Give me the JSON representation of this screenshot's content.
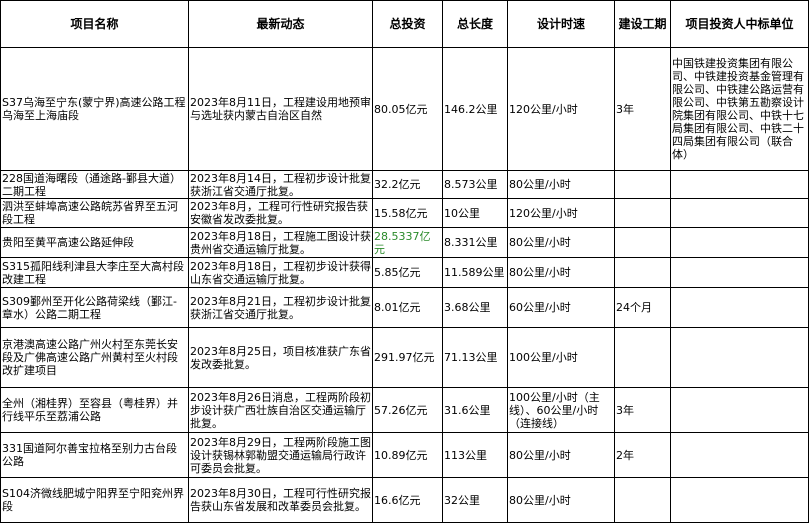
{
  "headers": [
    "项目名称",
    "最新动态",
    "总投资",
    "总长度",
    "设计时速",
    "建设工期",
    "项目投资人中标单位"
  ],
  "rows": [
    [
      "S37乌海至宁东(蒙宁界)高速公路工程乌海至上海庙段",
      "2023年8月11日，工程建设用地预审与选址获内蒙古自治区自然",
      "80.05亿元",
      "146.2公里",
      "120公里/小时",
      "3年",
      "中国铁建投资集团有限公司、中铁建投资基金管理有限公司、中铁建公路运营有限公司、中铁第五勘察设计院集团有限公司、中铁十七局集团有限公司、中铁二十四局集团有限公司（联合体）"
    ],
    [
      "228国道海曙段（通途路-鄞县大道）二期工程",
      "2023年8月14日，工程初步设计批复获浙江省交通厅批复。",
      "32.2亿元",
      "8.573公里",
      "80公里/小时",
      "",
      ""
    ],
    [
      "泗洪至蚌埠高速公路皖苏省界至五河段工程",
      "2023年8月，工程可行性研究报告获安徽省发改委批复。",
      "15.58亿元",
      "10公里",
      "120公里/小时",
      "",
      ""
    ],
    [
      "贵阳至黄平高速公路延伸段",
      "2023年8月18日，工程施工图设计获贵州省交通运输厅批复。",
      "28.5337亿元",
      "8.331公里",
      "80公里/小时",
      "",
      ""
    ],
    [
      "S315孤阳线利津县大李庄至大高村段改建工程",
      "2023年8月18日，工程初步设计获得山东省交通运输厅批复。",
      "5.85亿元",
      "11.589公里",
      "80公里/小时",
      "",
      ""
    ],
    [
      "S309鄞州至开化公路荷梁线（鄞江-章水）公路二期工程",
      "2023年8月21日，工程初步设计批复获浙江省交通厅批复。",
      "8.01亿元",
      "3.68公里",
      "60公里/小时",
      "24个月",
      ""
    ],
    [
      "京港澳高速公路广州火村至东莞长安段及广佛高速公路广州黄村至火村段改扩建项目",
      "2023年8月25日，项目核准获广东省发改委批复。",
      "291.97亿元",
      "71.13公里",
      "100公里/小时",
      "",
      ""
    ],
    [
      "全州（湘桂界）至容县（粤桂界）并行线平乐至荔浦公路",
      "2023年8月26日消息，工程两阶段初步设计获广西壮族自治区交通运输厅批复。",
      "57.26亿元",
      "31.6公里",
      "100公里/小时（主线）、60公里/小时（连接线）",
      "3年",
      ""
    ],
    [
      "331国道阿尔善宝拉格至别力古台段公路",
      "2023年8月29日，工程两阶段施工图设计获锡林郭勒盟交通运输局行政许可委员会批复。",
      "10.89亿元",
      "113公里",
      "80公里/小时",
      "2年",
      ""
    ],
    [
      "S104济微线肥城宁阳界至宁阳兖州界段",
      "2023年8月30日，工程可行性研究报告获山东省发展和改革委员会批复。",
      "16.6亿元",
      "32公里",
      "80公里/小时",
      "",
      ""
    ]
  ],
  "highlight_color": "#2a8a2a"
}
